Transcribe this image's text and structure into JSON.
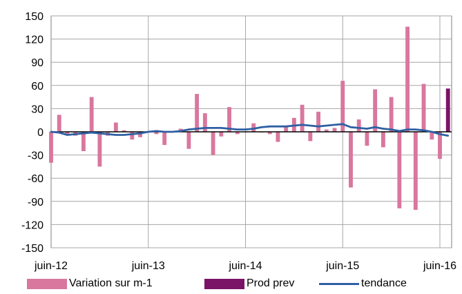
{
  "chart_data": {
    "type": "bar",
    "title": "",
    "xlabel": "",
    "ylabel": "",
    "ylim": [
      -150,
      150
    ],
    "yticks": [
      150,
      120,
      90,
      60,
      30,
      0,
      -30,
      -60,
      -90,
      -120,
      -150
    ],
    "xtick_labels": [
      "juin-12",
      "juin-13",
      "juin-14",
      "juin-15",
      "juin-16"
    ],
    "months": [
      "2012-06",
      "2012-07",
      "2012-08",
      "2012-09",
      "2012-10",
      "2012-11",
      "2012-12",
      "2013-01",
      "2013-02",
      "2013-03",
      "2013-04",
      "2013-05",
      "2013-06",
      "2013-07",
      "2013-08",
      "2013-09",
      "2013-10",
      "2013-11",
      "2013-12",
      "2014-01",
      "2014-02",
      "2014-03",
      "2014-04",
      "2014-05",
      "2014-06",
      "2014-07",
      "2014-08",
      "2014-09",
      "2014-10",
      "2014-11",
      "2014-12",
      "2015-01",
      "2015-02",
      "2015-03",
      "2015-04",
      "2015-05",
      "2015-06",
      "2015-07",
      "2015-08",
      "2015-09",
      "2015-10",
      "2015-11",
      "2015-12",
      "2016-01",
      "2016-02",
      "2016-03",
      "2016-04",
      "2016-05",
      "2016-06",
      "2016-07"
    ],
    "grid": true,
    "legend_position": "bottom",
    "series": [
      {
        "name": "Variation sur m-1",
        "type": "bar",
        "color": "#d9779e",
        "values": [
          -40,
          22,
          -3,
          -5,
          -25,
          45,
          -45,
          -5,
          12,
          2,
          -10,
          -7,
          0,
          -3,
          -17,
          0,
          4,
          -22,
          49,
          24,
          -30,
          -6,
          32,
          -3,
          0,
          11,
          0,
          -3,
          -13,
          8,
          18,
          35,
          -12,
          26,
          3,
          5,
          66,
          -72,
          16,
          -18,
          55,
          -20,
          45,
          -99,
          136,
          -101,
          62,
          -10,
          -35,
          null
        ]
      },
      {
        "name": "Prod prev",
        "type": "bar",
        "color": "#7b1466",
        "values": [
          null,
          null,
          null,
          null,
          null,
          null,
          null,
          null,
          null,
          null,
          null,
          null,
          null,
          null,
          null,
          null,
          null,
          null,
          null,
          null,
          null,
          null,
          null,
          null,
          null,
          null,
          null,
          null,
          null,
          null,
          null,
          null,
          null,
          null,
          null,
          null,
          null,
          null,
          null,
          null,
          null,
          null,
          null,
          null,
          null,
          null,
          null,
          null,
          null,
          56
        ]
      },
      {
        "name": "tendance",
        "type": "line",
        "color": "#2e5fa3",
        "values": [
          0,
          -1,
          -4,
          -3,
          -2,
          -1,
          -2,
          -3,
          -4,
          -4,
          -3,
          -2,
          0,
          1,
          0,
          0,
          1,
          3,
          4,
          5,
          5,
          5,
          4,
          3,
          3,
          4,
          6,
          7,
          7,
          7,
          8,
          9,
          8,
          7,
          8,
          9,
          10,
          6,
          5,
          4,
          6,
          4,
          3,
          1,
          3,
          3,
          2,
          0,
          -3,
          -5
        ]
      }
    ]
  }
}
